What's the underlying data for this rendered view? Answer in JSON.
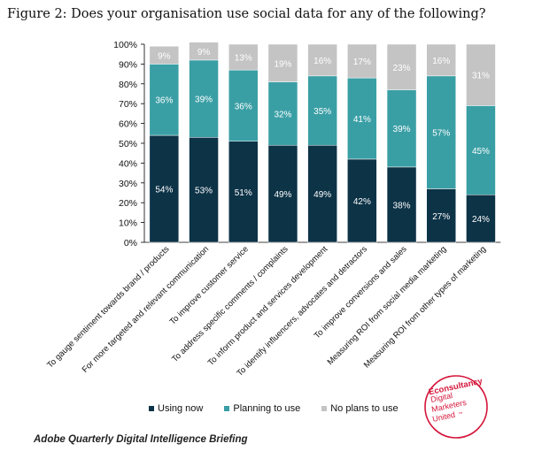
{
  "title": "Figure 2: Does your organisation use social data for any of the following?",
  "footer": "Adobe Quarterly Digital Intelligence Briefing",
  "logo": {
    "line1": "Econsultancy",
    "line2": "Digital",
    "line3": "Marketers",
    "line4": "United",
    "tm": "™",
    "color": "#d4153a"
  },
  "colors": {
    "using": "#0d3347",
    "planning": "#3a9fa5",
    "noplans": "#c4c4c4"
  },
  "chart_data": {
    "type": "bar",
    "stacked": true,
    "categories": [
      "To gauge sentiment towards brand / products",
      "For more targeted and relevant communication",
      "To improve customer service",
      "To address specific comments / complaints",
      "To inform product and services development",
      "To identify influencers, advocates and detractors",
      "To improve conversions and sales",
      "Measuring ROI from social media marketing",
      "Measuring ROI from other types of marketing"
    ],
    "series": [
      {
        "name": "Using now",
        "values": [
          54,
          53,
          51,
          49,
          49,
          42,
          38,
          27,
          24
        ],
        "labels": [
          "54%",
          "53%",
          "51%",
          "49%",
          "49%",
          "42%",
          "38%",
          "27%",
          "24%"
        ]
      },
      {
        "name": "Planning to use",
        "values": [
          36,
          39,
          36,
          32,
          35,
          41,
          39,
          57,
          45
        ],
        "labels": [
          "36%",
          "39%",
          "36%",
          "32%",
          "35%",
          "41%",
          "39%",
          "57%",
          "45%"
        ]
      },
      {
        "name": "No plans to use",
        "values": [
          9,
          9,
          13,
          19,
          16,
          17,
          23,
          16,
          31
        ],
        "labels": [
          "9%",
          "9%",
          "13%",
          "19%",
          "16%",
          "17%",
          "23%",
          "16%",
          "31%"
        ]
      }
    ],
    "ylim": [
      0,
      100
    ],
    "yticks": [
      "0%",
      "10%",
      "20%",
      "30%",
      "40%",
      "50%",
      "60%",
      "70%",
      "80%",
      "90%",
      "100%"
    ],
    "grid": false,
    "legend": "bottom"
  }
}
